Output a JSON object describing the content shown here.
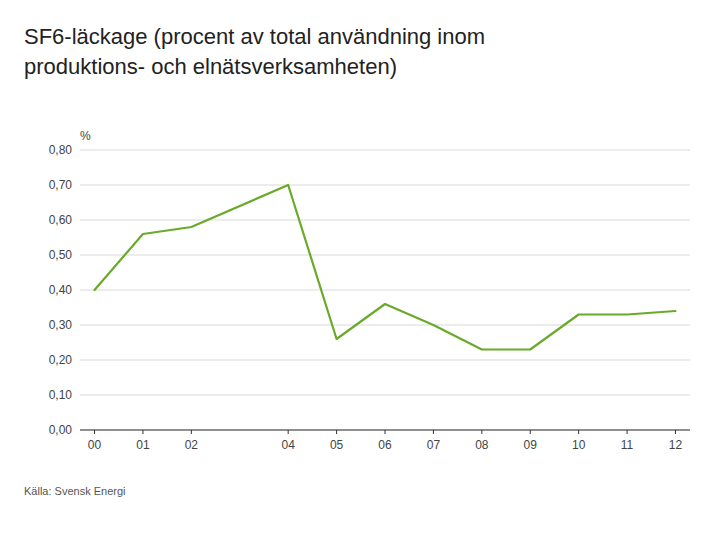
{
  "chart_data": {
    "type": "line",
    "title": "SF6-läckage (procent av total användning inom",
    "subtitle": "produktions- och elnätsverksamheten)",
    "y_label": "%",
    "source": "Källa: Svensk Energi",
    "x": [
      0,
      1,
      2,
      4,
      5,
      6,
      7,
      8,
      9,
      10,
      11,
      12
    ],
    "values": [
      0.4,
      0.56,
      0.58,
      0.7,
      0.26,
      0.36,
      0.3,
      0.23,
      0.23,
      0.33,
      0.33,
      0.34
    ],
    "color": "#6aaa2a",
    "xlim": [
      -0.3,
      12.3
    ],
    "xticks": [
      {
        "value": 0,
        "label": "00"
      },
      {
        "value": 1,
        "label": "01"
      },
      {
        "value": 2,
        "label": "02"
      },
      {
        "value": 4,
        "label": "04"
      },
      {
        "value": 5,
        "label": "05"
      },
      {
        "value": 6,
        "label": "06"
      },
      {
        "value": 7,
        "label": "07"
      },
      {
        "value": 8,
        "label": "08"
      },
      {
        "value": 9,
        "label": "09"
      },
      10,
      11,
      12
    ],
    "ylim": [
      0.0,
      0.8
    ],
    "yticks": [
      {
        "value": 0.0,
        "label": "0,00"
      },
      {
        "value": 0.1,
        "label": "0,10"
      },
      {
        "value": 0.2,
        "label": "0,20"
      },
      {
        "value": 0.3,
        "label": "0,30"
      },
      {
        "value": 0.4,
        "label": "0,40"
      },
      {
        "value": 0.5,
        "label": "0,50"
      },
      {
        "value": 0.6,
        "label": "0,60"
      },
      {
        "value": 0.7,
        "label": "0,70"
      },
      {
        "value": 0.8,
        "label": "0,80"
      }
    ],
    "grid": true
  }
}
